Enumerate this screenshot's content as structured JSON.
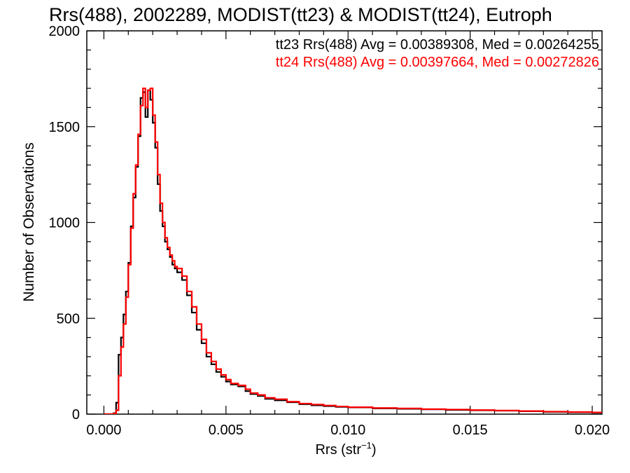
{
  "chart_data": {
    "type": "line",
    "style": "step histogram",
    "title": "Rrs(488), 2002289, MODIST(tt23) & MODIST(tt24), Eutroph",
    "xlabel": "Rrs (str",
    "xlabel_sup": "−1",
    "xlabel_close": ")",
    "ylabel": "Number of Observations",
    "xlim": [
      -0.0007,
      0.0204
    ],
    "ylim": [
      0,
      2000
    ],
    "x_ticks": [
      "0.000",
      "0.005",
      "0.010",
      "0.015",
      "0.020"
    ],
    "y_ticks": [
      "0",
      "500",
      "1000",
      "1500",
      "2000"
    ],
    "grid": false,
    "legend_position": "top-right",
    "legend": [
      {
        "text": "tt23 Rrs(488) Avg = 0.00389308, Med = 0.00264255",
        "color": "#000000"
      },
      {
        "text": "tt24 Rrs(488) Avg = 0.00397664, Med = 0.00272826",
        "color": "#ff0000"
      }
    ],
    "series": [
      {
        "color": "#000000",
        "x": [
          0.0,
          0.0002,
          0.0004,
          0.0005,
          0.0006,
          0.0007,
          0.0008,
          0.0009,
          0.001,
          0.0011,
          0.0012,
          0.0013,
          0.0014,
          0.0015,
          0.0016,
          0.0017,
          0.0018,
          0.0019,
          0.002,
          0.0021,
          0.0022,
          0.0023,
          0.0024,
          0.0025,
          0.0026,
          0.0027,
          0.0028,
          0.0029,
          0.003,
          0.0032,
          0.0034,
          0.0036,
          0.0038,
          0.004,
          0.0042,
          0.0044,
          0.0046,
          0.0048,
          0.005,
          0.0052,
          0.0055,
          0.0058,
          0.006,
          0.0063,
          0.0066,
          0.007,
          0.0075,
          0.008,
          0.0085,
          0.009,
          0.0095,
          0.01,
          0.011,
          0.012,
          0.013,
          0.014,
          0.015,
          0.016,
          0.017,
          0.018,
          0.019,
          0.02
        ],
        "y": [
          0,
          0,
          5,
          60,
          310,
          400,
          520,
          640,
          790,
          980,
          1130,
          1290,
          1450,
          1650,
          1680,
          1550,
          1690,
          1640,
          1520,
          1390,
          1200,
          1060,
          980,
          900,
          860,
          820,
          780,
          760,
          740,
          700,
          620,
          530,
          440,
          370,
          300,
          260,
          220,
          195,
          170,
          155,
          145,
          120,
          105,
          95,
          80,
          72,
          62,
          52,
          46,
          42,
          38,
          35,
          30,
          28,
          25,
          22,
          20,
          18,
          15,
          12,
          10,
          8
        ]
      },
      {
        "color": "#ff0000",
        "x": [
          0.0,
          0.0002,
          0.0004,
          0.0005,
          0.0006,
          0.0007,
          0.0008,
          0.0009,
          0.001,
          0.0011,
          0.0012,
          0.0013,
          0.0014,
          0.0015,
          0.0016,
          0.0017,
          0.0018,
          0.0019,
          0.002,
          0.0021,
          0.0022,
          0.0023,
          0.0024,
          0.0025,
          0.0026,
          0.0027,
          0.0028,
          0.0029,
          0.003,
          0.0032,
          0.0034,
          0.0036,
          0.0038,
          0.004,
          0.0042,
          0.0044,
          0.0046,
          0.0048,
          0.005,
          0.0052,
          0.0055,
          0.0058,
          0.006,
          0.0063,
          0.0066,
          0.007,
          0.0075,
          0.008,
          0.0085,
          0.009,
          0.0095,
          0.01,
          0.011,
          0.012,
          0.013,
          0.014,
          0.015,
          0.016,
          0.017,
          0.018,
          0.019,
          0.02
        ],
        "y": [
          0,
          0,
          3,
          20,
          200,
          350,
          470,
          610,
          780,
          970,
          1150,
          1300,
          1460,
          1610,
          1700,
          1600,
          1690,
          1700,
          1560,
          1420,
          1250,
          1100,
          1000,
          920,
          870,
          830,
          800,
          770,
          760,
          720,
          640,
          560,
          470,
          390,
          320,
          275,
          235,
          205,
          180,
          160,
          150,
          130,
          110,
          100,
          85,
          78,
          65,
          55,
          50,
          45,
          40,
          36,
          32,
          30,
          26,
          24,
          21,
          19,
          16,
          13,
          11,
          9
        ]
      }
    ]
  }
}
